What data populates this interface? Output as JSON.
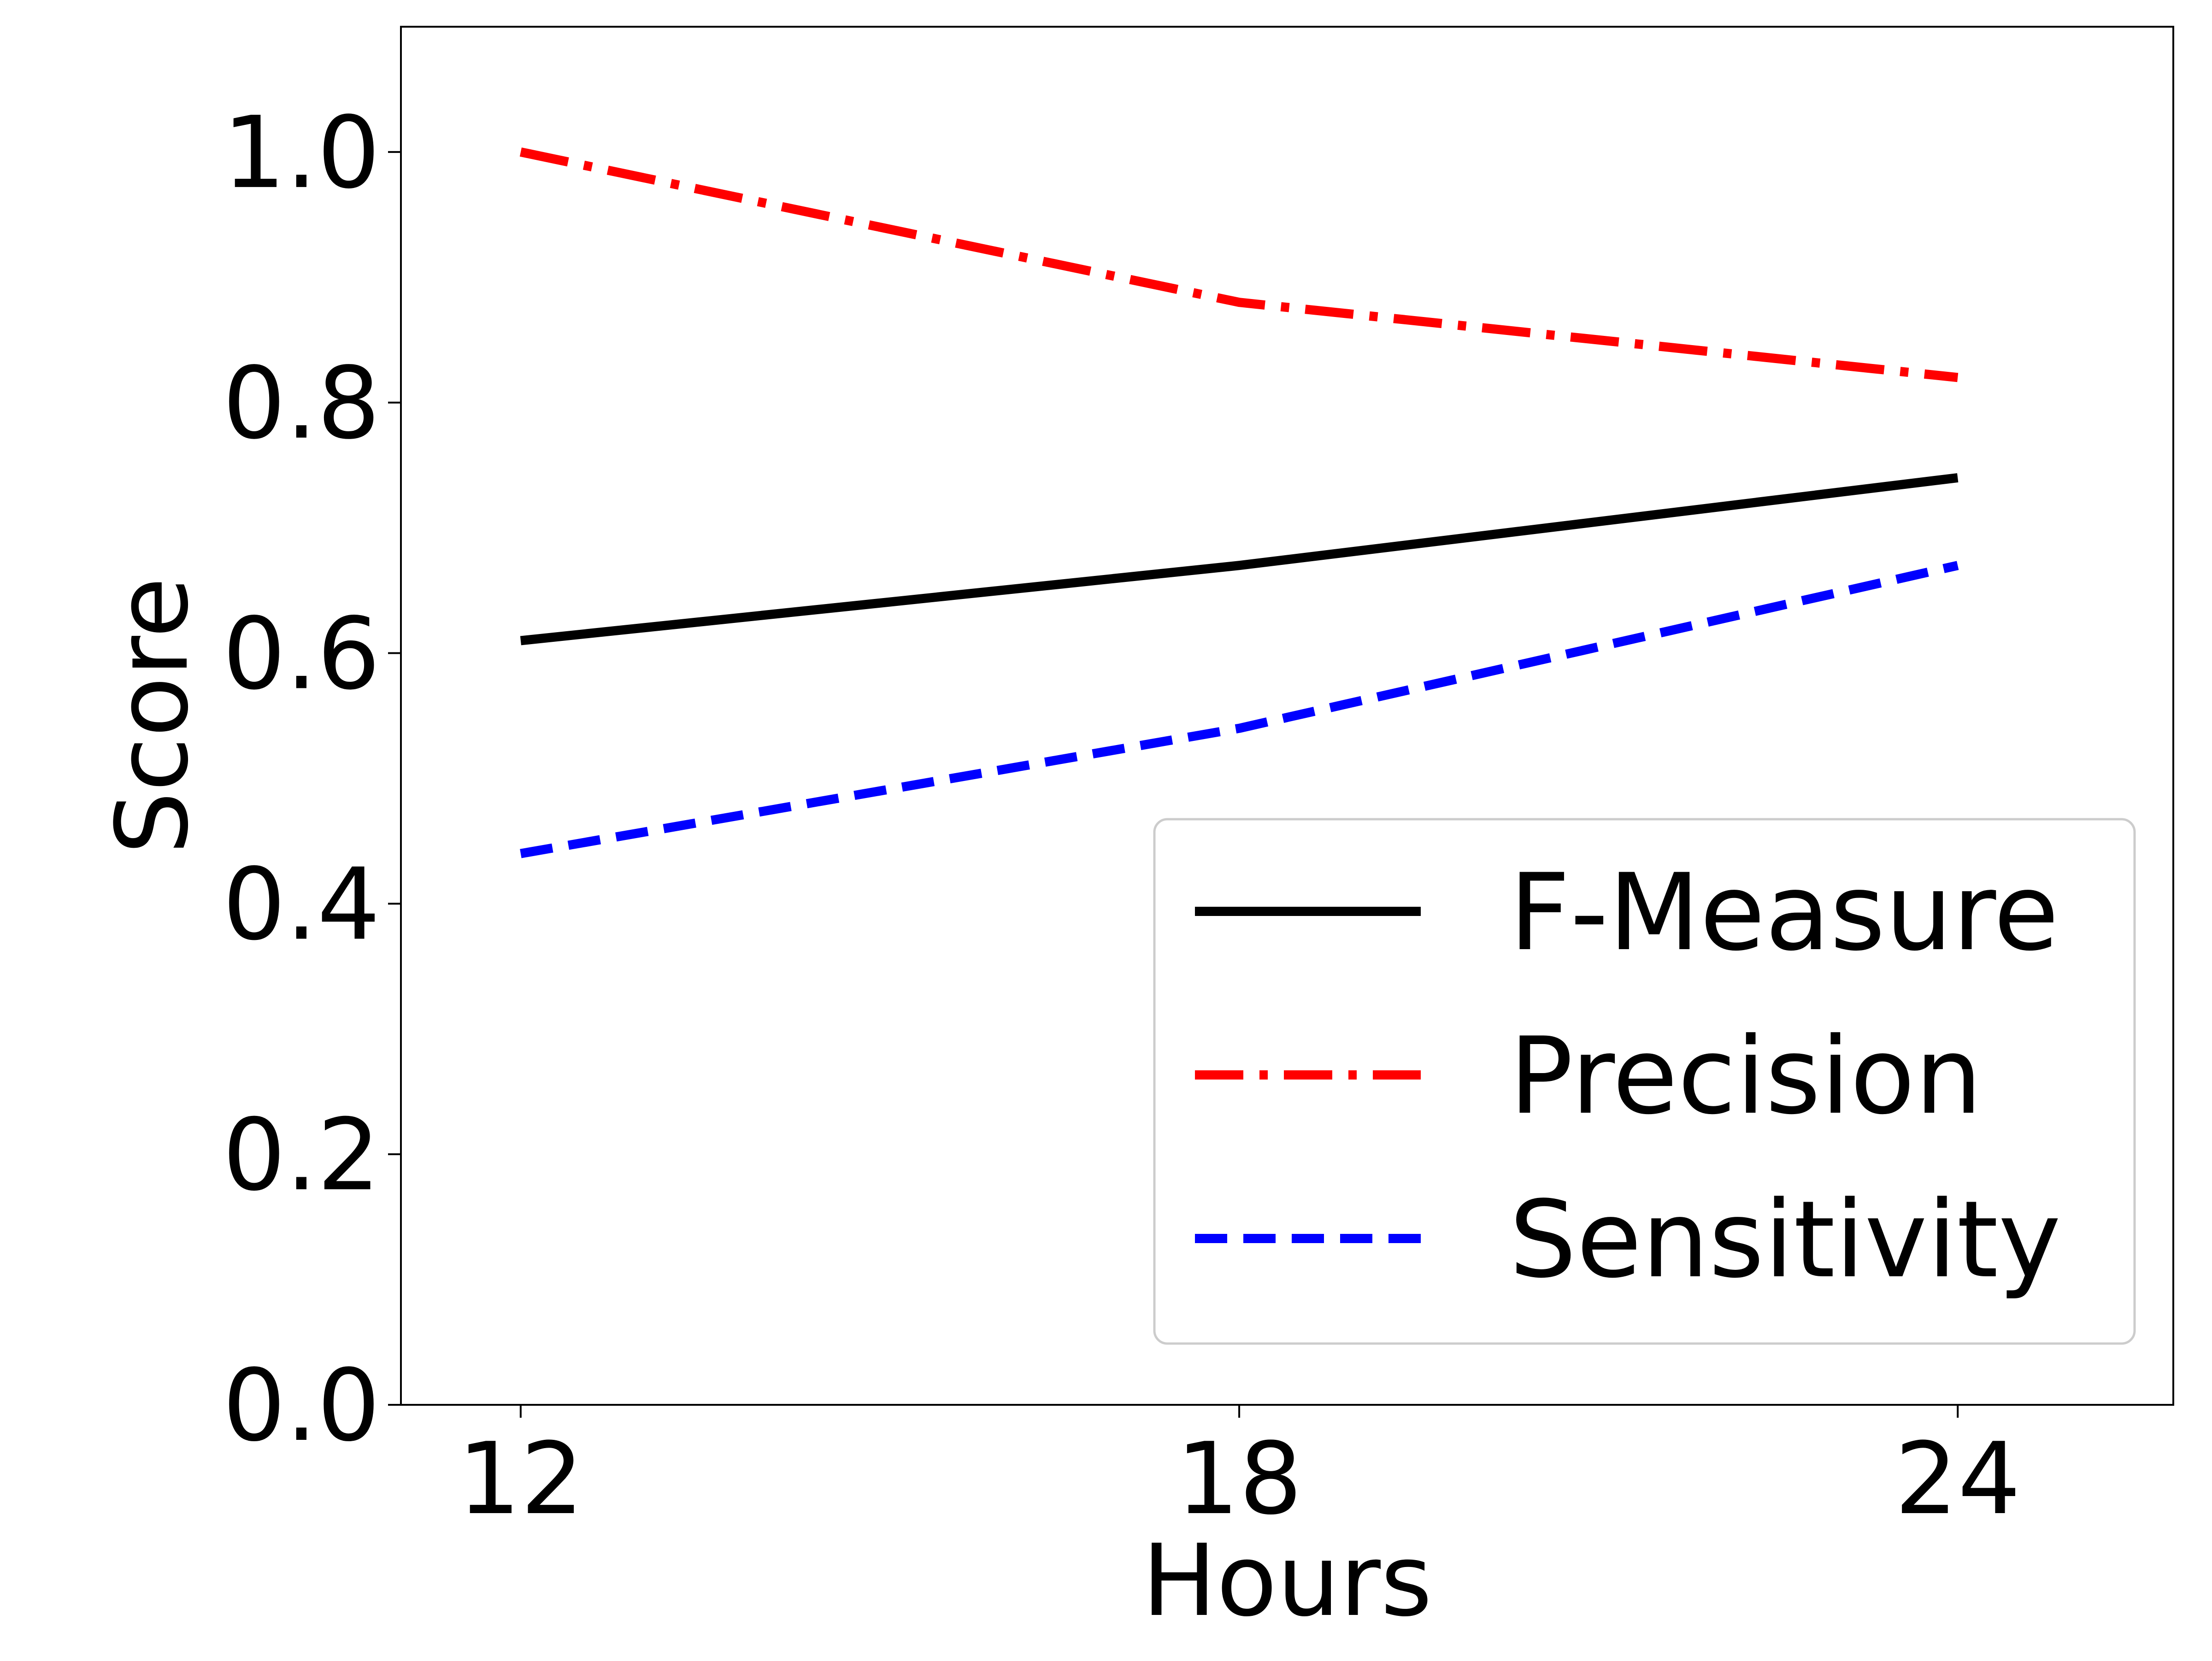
{
  "chart_data": {
    "type": "line",
    "xlabel": "Hours",
    "ylabel": "Score",
    "x": [
      12,
      18,
      24
    ],
    "x_ticks": [
      "12",
      "18",
      "24"
    ],
    "ylim": [
      0.0,
      1.1
    ],
    "y_ticks": [
      "0.0",
      "0.2",
      "0.4",
      "0.6",
      "0.8",
      "1.0"
    ],
    "grid": false,
    "legend_position": "lower-right",
    "series": [
      {
        "name": "F-Measure",
        "values": [
          0.61,
          0.67,
          0.74
        ],
        "color": "#000000",
        "style": "solid"
      },
      {
        "name": "Precision",
        "values": [
          1.0,
          0.88,
          0.82
        ],
        "color": "#ff0000",
        "style": "dashdot"
      },
      {
        "name": "Sensitivity",
        "values": [
          0.44,
          0.54,
          0.67
        ],
        "color": "#0000ff",
        "style": "dashed"
      }
    ]
  }
}
